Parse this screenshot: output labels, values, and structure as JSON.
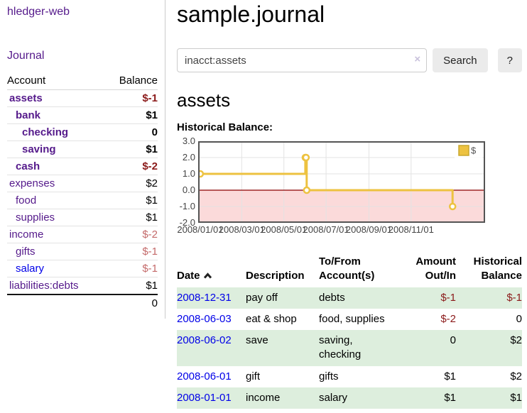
{
  "app": {
    "title": "hledger-web",
    "nav_journal": "Journal"
  },
  "sidebar_accounts": {
    "col_account": "Account",
    "col_balance": "Balance",
    "rows": [
      {
        "name": "assets",
        "indent": 0,
        "bold": true,
        "balance": "$-1",
        "balance_style": "negative-strong"
      },
      {
        "name": "bank",
        "indent": 1,
        "bold": true,
        "balance": "$1",
        "balance_style": "normal"
      },
      {
        "name": "checking",
        "indent": 2,
        "bold": true,
        "balance": "0",
        "balance_style": "normal"
      },
      {
        "name": "saving",
        "indent": 2,
        "bold": true,
        "balance": "$1",
        "balance_style": "normal"
      },
      {
        "name": "cash",
        "indent": 1,
        "bold": true,
        "balance": "$-2",
        "balance_style": "negative-strong"
      },
      {
        "name": "expenses",
        "indent": 0,
        "bold": false,
        "balance": "$2",
        "balance_style": "normal"
      },
      {
        "name": "food",
        "indent": 1,
        "bold": false,
        "balance": "$1",
        "balance_style": "normal"
      },
      {
        "name": "supplies",
        "indent": 1,
        "bold": false,
        "balance": "$1",
        "balance_style": "normal"
      },
      {
        "name": "income",
        "indent": 0,
        "bold": false,
        "balance": "$-2",
        "balance_style": "negative-soft"
      },
      {
        "name": "gifts",
        "indent": 1,
        "bold": false,
        "balance": "$-1",
        "balance_style": "negative-soft"
      },
      {
        "name": "salary",
        "indent": 1,
        "bold": false,
        "balance": "$-1",
        "balance_style": "negative-soft",
        "link_color": "blue"
      },
      {
        "name": "liabilities:debts",
        "indent": 0,
        "bold": false,
        "balance": "$1",
        "balance_style": "normal"
      }
    ],
    "total": "0"
  },
  "main": {
    "title": "sample.journal",
    "search": {
      "value": "inacct:assets",
      "clear_icon": "×",
      "search_button": "Search",
      "help_button": "?"
    },
    "account_heading": "assets",
    "chart_title": "Historical Balance:"
  },
  "chart_data": {
    "type": "line",
    "step": true,
    "title": "Historical Balance of assets",
    "series": [
      {
        "name": "$",
        "color": "#edc240",
        "points": [
          {
            "x": "2008-01-01",
            "y": 1
          },
          {
            "x": "2008-06-01",
            "y": 2
          },
          {
            "x": "2008-06-02",
            "y": 2
          },
          {
            "x": "2008-06-03",
            "y": 0
          },
          {
            "x": "2008-12-31",
            "y": -1
          }
        ]
      }
    ],
    "ylim": [
      -2,
      3
    ],
    "yticks": [
      3.0,
      2.0,
      1.0,
      0.0,
      -1.0,
      -2.0
    ],
    "xticks": [
      {
        "date": "2008-01-01",
        "label": "2008/01/01"
      },
      {
        "date": "2008-03-01",
        "label": "2008/03/01"
      },
      {
        "date": "2008-05-01",
        "label": "2008/05/01"
      },
      {
        "date": "2008-07-01",
        "label": "2008/07/01"
      },
      {
        "date": "2008-09-01",
        "label": "2008/09/01"
      },
      {
        "date": "2008-11-01",
        "label": "2008/11/01"
      }
    ],
    "x_range_days": [
      -3,
      412
    ],
    "grid": true,
    "legend": {
      "label": "$",
      "position": "top-right"
    },
    "negative_region_color": "#fbdada",
    "zero_line_color": "#8b0000"
  },
  "register_table": {
    "headers": {
      "date": "Date",
      "description": "Description",
      "accounts": "To/From Account(s)",
      "amount": "Amount Out/In",
      "balance": "Historical Balance"
    },
    "sort_icon": "chevron-up",
    "rows": [
      {
        "date": "2008-12-31",
        "description": "pay off",
        "accounts": "debts",
        "amount": "$-1",
        "amount_negative": true,
        "balance": "$-1",
        "balance_negative": true
      },
      {
        "date": "2008-06-03",
        "description": "eat & shop",
        "accounts": "food, supplies",
        "amount": "$-2",
        "amount_negative": true,
        "balance": "0",
        "balance_negative": false
      },
      {
        "date": "2008-06-02",
        "description": "save",
        "accounts": "saving, checking",
        "amount": "0",
        "amount_negative": false,
        "balance": "$2",
        "balance_negative": false
      },
      {
        "date": "2008-06-01",
        "description": "gift",
        "accounts": "gifts",
        "amount": "$1",
        "amount_negative": false,
        "balance": "$2",
        "balance_negative": false
      },
      {
        "date": "2008-01-01",
        "description": "income",
        "accounts": "salary",
        "amount": "$1",
        "amount_negative": false,
        "balance": "$1",
        "balance_negative": false
      }
    ]
  },
  "colors": {
    "link_purple": "#551a8b",
    "link_blue": "#0000e8",
    "negative_strong": "#8b1a1a",
    "negative_soft": "#c46a6a",
    "row_stripe_green": "#ddeedd",
    "series_yellow": "#edc240",
    "chart_border": "#545454",
    "negative_region": "#fbdada",
    "zero_line": "#8b0000"
  }
}
